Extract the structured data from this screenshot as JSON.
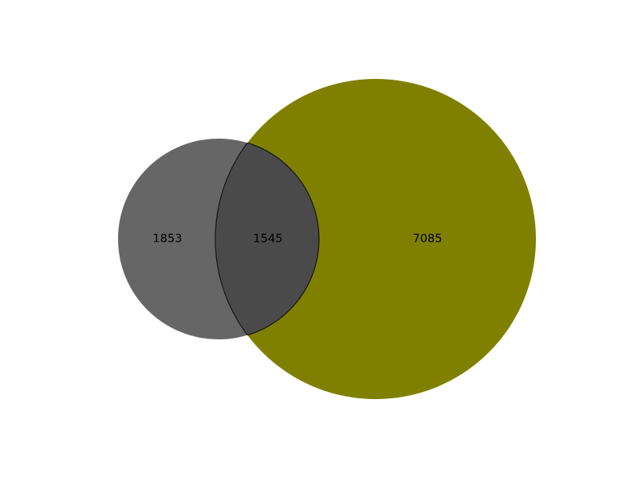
{
  "chart_data": {
    "type": "venn",
    "sets": [
      {
        "id": "A",
        "color": "#666666"
      },
      {
        "id": "B",
        "color": "#808000"
      }
    ],
    "regions": [
      {
        "sets": [
          "A"
        ],
        "value": "1853"
      },
      {
        "sets": [
          "A",
          "B"
        ],
        "value": "1545"
      },
      {
        "sets": [
          "B"
        ],
        "value": "7085"
      }
    ],
    "intersection_color": "#4a4a4a",
    "outline_color": "#1a1a1a"
  }
}
